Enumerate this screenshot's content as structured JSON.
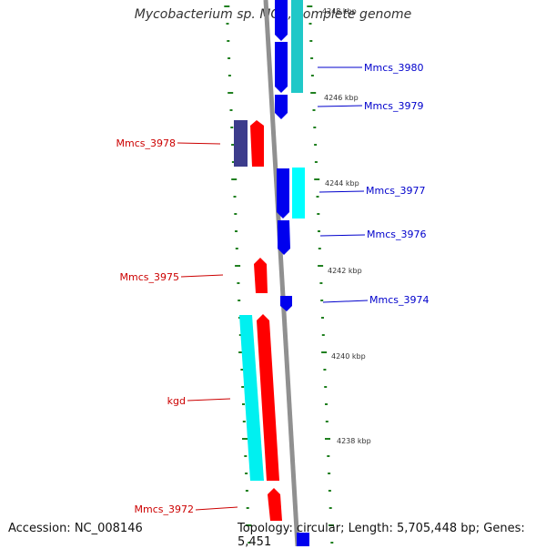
{
  "title": "Mycobacterium sp. MCS, complete genome",
  "footer": {
    "accession": "Accession: NC_008146",
    "topology": "Topology: circular; Length: 5,705,448 bp; Genes: 5,451"
  },
  "colors": {
    "forward_gene": "#ff0000",
    "reverse_gene": "#0000ee",
    "forward_cds_cyan": "#00ffff",
    "reverse_cds_teal": "#20c8c8",
    "dark_feature": "#3c3c8c",
    "backbone": "#888888",
    "tick": "#208020",
    "label_forward": "#cc0000",
    "label_reverse": "#0000cc",
    "kbp_label": "#333333"
  },
  "kbp_labels": [
    "4248 kbp",
    "4246 kbp",
    "4244 kbp",
    "4242 kbp",
    "4240 kbp",
    "4238 kbp"
  ],
  "genes_forward": [
    {
      "name": "Mmcs_3978"
    },
    {
      "name": "Mmcs_3975"
    },
    {
      "name": "kgd"
    },
    {
      "name": "Mmcs_3972"
    }
  ],
  "genes_reverse": [
    {
      "name": "Mmcs_3980"
    },
    {
      "name": "Mmcs_3979"
    },
    {
      "name": "Mmcs_3977"
    },
    {
      "name": "Mmcs_3976"
    },
    {
      "name": "Mmcs_3974"
    }
  ]
}
